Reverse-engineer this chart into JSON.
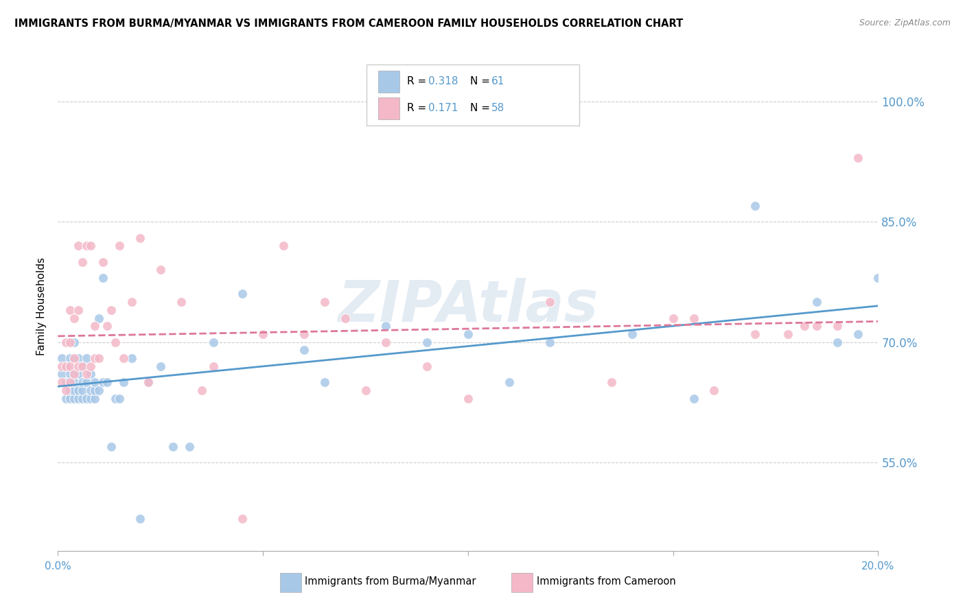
{
  "title": "IMMIGRANTS FROM BURMA/MYANMAR VS IMMIGRANTS FROM CAMEROON FAMILY HOUSEHOLDS CORRELATION CHART",
  "source": "Source: ZipAtlas.com",
  "ylabel": "Family Households",
  "ytick_labels": [
    "55.0%",
    "70.0%",
    "85.0%",
    "100.0%"
  ],
  "ytick_values": [
    0.55,
    0.7,
    0.85,
    1.0
  ],
  "xtick_labels": [
    "0.0%",
    "20.0%"
  ],
  "xlim": [
    0.0,
    0.2
  ],
  "ylim": [
    0.44,
    1.05
  ],
  "legend_R1": "0.318",
  "legend_N1": "61",
  "legend_R2": "0.171",
  "legend_N2": "58",
  "color_blue": "#a8c8e8",
  "color_pink": "#f4b8c8",
  "line_color_blue": "#5599cc",
  "line_color_pink": "#dd7799",
  "tick_color": "#5599cc",
  "watermark": "ZIPAtlas",
  "blue_points_x": [
    0.001,
    0.001,
    0.002,
    0.002,
    0.002,
    0.003,
    0.003,
    0.003,
    0.003,
    0.004,
    0.004,
    0.004,
    0.004,
    0.005,
    0.005,
    0.005,
    0.005,
    0.006,
    0.006,
    0.006,
    0.006,
    0.007,
    0.007,
    0.007,
    0.008,
    0.008,
    0.008,
    0.009,
    0.009,
    0.009,
    0.01,
    0.01,
    0.011,
    0.011,
    0.012,
    0.013,
    0.014,
    0.015,
    0.016,
    0.018,
    0.02,
    0.022,
    0.025,
    0.028,
    0.032,
    0.038,
    0.045,
    0.06,
    0.065,
    0.08,
    0.09,
    0.1,
    0.11,
    0.12,
    0.14,
    0.155,
    0.17,
    0.185,
    0.19,
    0.195,
    0.2
  ],
  "blue_points_y": [
    0.66,
    0.68,
    0.63,
    0.65,
    0.67,
    0.63,
    0.64,
    0.66,
    0.68,
    0.63,
    0.64,
    0.65,
    0.7,
    0.63,
    0.64,
    0.66,
    0.68,
    0.63,
    0.64,
    0.65,
    0.67,
    0.63,
    0.65,
    0.68,
    0.63,
    0.64,
    0.66,
    0.63,
    0.64,
    0.65,
    0.64,
    0.73,
    0.65,
    0.78,
    0.65,
    0.57,
    0.63,
    0.63,
    0.65,
    0.68,
    0.48,
    0.65,
    0.67,
    0.57,
    0.57,
    0.7,
    0.76,
    0.69,
    0.65,
    0.72,
    0.7,
    0.71,
    0.65,
    0.7,
    0.71,
    0.63,
    0.87,
    0.75,
    0.7,
    0.71,
    0.78
  ],
  "pink_points_x": [
    0.001,
    0.001,
    0.002,
    0.002,
    0.002,
    0.003,
    0.003,
    0.003,
    0.003,
    0.004,
    0.004,
    0.004,
    0.005,
    0.005,
    0.005,
    0.006,
    0.006,
    0.007,
    0.007,
    0.008,
    0.008,
    0.009,
    0.009,
    0.01,
    0.011,
    0.012,
    0.013,
    0.014,
    0.015,
    0.016,
    0.018,
    0.02,
    0.022,
    0.025,
    0.03,
    0.035,
    0.038,
    0.045,
    0.05,
    0.055,
    0.06,
    0.065,
    0.07,
    0.075,
    0.08,
    0.09,
    0.1,
    0.12,
    0.135,
    0.15,
    0.155,
    0.16,
    0.17,
    0.178,
    0.182,
    0.185,
    0.19,
    0.195
  ],
  "pink_points_y": [
    0.65,
    0.67,
    0.64,
    0.67,
    0.7,
    0.65,
    0.67,
    0.7,
    0.74,
    0.66,
    0.68,
    0.73,
    0.67,
    0.74,
    0.82,
    0.67,
    0.8,
    0.66,
    0.82,
    0.67,
    0.82,
    0.68,
    0.72,
    0.68,
    0.8,
    0.72,
    0.74,
    0.7,
    0.82,
    0.68,
    0.75,
    0.83,
    0.65,
    0.79,
    0.75,
    0.64,
    0.67,
    0.48,
    0.71,
    0.82,
    0.71,
    0.75,
    0.73,
    0.64,
    0.7,
    0.67,
    0.63,
    0.75,
    0.65,
    0.73,
    0.73,
    0.64,
    0.71,
    0.71,
    0.72,
    0.72,
    0.72,
    0.93
  ]
}
